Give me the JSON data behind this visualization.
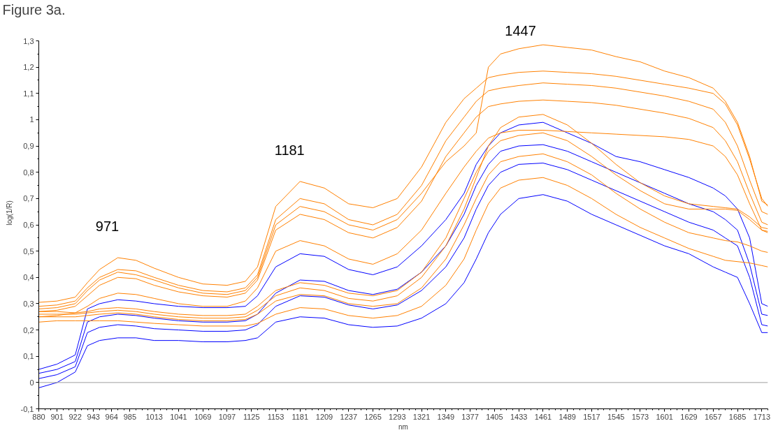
{
  "chart_data": {
    "type": "line",
    "title": "Figure 3a.",
    "xlabel": "nm",
    "ylabel": "log(1/R)",
    "xlim": [
      880,
      1720
    ],
    "ylim": [
      -0.1,
      1.3
    ],
    "xticks": [
      880,
      {
        "value": 887,
        "label": null
      },
      {
        "value": 894,
        "label": null
      },
      901,
      {
        "value": 908,
        "label": null
      },
      {
        "value": 915,
        "label": null
      },
      922,
      {
        "value": 929,
        "label": null
      },
      {
        "value": 936,
        "label": null
      },
      943,
      {
        "value": 950,
        "label": null
      },
      {
        "value": 957,
        "label": null
      },
      964,
      {
        "value": 971,
        "label": null
      },
      {
        "value": 978,
        "label": null
      },
      985,
      {
        "value": 992,
        "label": null
      },
      {
        "value": 999,
        "label": null
      },
      {
        "value": 1006,
        "label": null
      },
      1013,
      {
        "value": 1020,
        "label": null
      },
      {
        "value": 1027,
        "label": null
      },
      {
        "value": 1034,
        "label": null
      },
      1041,
      {
        "value": 1048,
        "label": null
      },
      {
        "value": 1055,
        "label": null
      },
      {
        "value": 1062,
        "label": null
      },
      1069,
      {
        "value": 1076,
        "label": null
      },
      {
        "value": 1083,
        "label": null
      },
      {
        "value": 1090,
        "label": null
      },
      1097,
      {
        "value": 1104,
        "label": null
      },
      {
        "value": 1111,
        "label": null
      },
      {
        "value": 1118,
        "label": null
      },
      1125,
      {
        "value": 1132,
        "label": null
      },
      {
        "value": 1139,
        "label": null
      },
      {
        "value": 1146,
        "label": null
      },
      1153,
      {
        "value": 1160,
        "label": null
      },
      {
        "value": 1167,
        "label": null
      },
      {
        "value": 1174,
        "label": null
      },
      1181,
      {
        "value": 1188,
        "label": null
      },
      {
        "value": 1195,
        "label": null
      },
      {
        "value": 1202,
        "label": null
      },
      1209,
      {
        "value": 1216,
        "label": null
      },
      {
        "value": 1223,
        "label": null
      },
      {
        "value": 1230,
        "label": null
      },
      1237,
      {
        "value": 1244,
        "label": null
      },
      {
        "value": 1251,
        "label": null
      },
      {
        "value": 1258,
        "label": null
      },
      1265,
      {
        "value": 1272,
        "label": null
      },
      {
        "value": 1279,
        "label": null
      },
      {
        "value": 1286,
        "label": null
      },
      1293,
      {
        "value": 1300,
        "label": null
      },
      {
        "value": 1307,
        "label": null
      },
      {
        "value": 1314,
        "label": null
      },
      1321,
      {
        "value": 1328,
        "label": null
      },
      {
        "value": 1335,
        "label": null
      },
      {
        "value": 1342,
        "label": null
      },
      1349,
      {
        "value": 1356,
        "label": null
      },
      {
        "value": 1363,
        "label": null
      },
      {
        "value": 1370,
        "label": null
      },
      1377,
      {
        "value": 1384,
        "label": null
      },
      {
        "value": 1391,
        "label": null
      },
      {
        "value": 1398,
        "label": null
      },
      1405,
      {
        "value": 1412,
        "label": null
      },
      {
        "value": 1419,
        "label": null
      },
      {
        "value": 1426,
        "label": null
      },
      1433,
      {
        "value": 1440,
        "label": null
      },
      {
        "value": 1447,
        "label": null
      },
      {
        "value": 1454,
        "label": null
      },
      1461,
      {
        "value": 1468,
        "label": null
      },
      {
        "value": 1475,
        "label": null
      },
      {
        "value": 1482,
        "label": null
      },
      1489,
      {
        "value": 1496,
        "label": null
      },
      {
        "value": 1503,
        "label": null
      },
      {
        "value": 1510,
        "label": null
      },
      1517,
      {
        "value": 1524,
        "label": null
      },
      {
        "value": 1531,
        "label": null
      },
      {
        "value": 1538,
        "label": null
      },
      1545,
      {
        "value": 1552,
        "label": null
      },
      {
        "value": 1559,
        "label": null
      },
      {
        "value": 1566,
        "label": null
      },
      1573,
      {
        "value": 1580,
        "label": null
      },
      {
        "value": 1587,
        "label": null
      },
      {
        "value": 1594,
        "label": null
      },
      1601,
      {
        "value": 1608,
        "label": null
      },
      {
        "value": 1615,
        "label": null
      },
      {
        "value": 1622,
        "label": null
      },
      1629,
      {
        "value": 1636,
        "label": null
      },
      {
        "value": 1643,
        "label": null
      },
      {
        "value": 1650,
        "label": null
      },
      1657,
      {
        "value": 1664,
        "label": null
      },
      {
        "value": 1671,
        "label": null
      },
      {
        "value": 1678,
        "label": null
      },
      1685,
      {
        "value": 1692,
        "label": null
      },
      {
        "value": 1699,
        "label": null
      },
      {
        "value": 1706,
        "label": null
      },
      1713,
      {
        "value": 1720,
        "label": null
      }
    ],
    "yticks": [
      {
        "value": -0.1,
        "label": "-0,1"
      },
      {
        "value": -0.05,
        "label": null
      },
      0,
      {
        "value": 0.05,
        "label": null
      },
      {
        "value": 0.1,
        "label": "0,1"
      },
      {
        "value": 0.15,
        "label": null
      },
      {
        "value": 0.2,
        "label": "0,2"
      },
      {
        "value": 0.25,
        "label": null
      },
      {
        "value": 0.3,
        "label": "0,3"
      },
      {
        "value": 0.35,
        "label": null
      },
      {
        "value": 0.4,
        "label": "0,4"
      },
      {
        "value": 0.45,
        "label": null
      },
      {
        "value": 0.5,
        "label": "0,5"
      },
      {
        "value": 0.55,
        "label": null
      },
      {
        "value": 0.6,
        "label": "0,6"
      },
      {
        "value": 0.65,
        "label": null
      },
      {
        "value": 0.7,
        "label": "0,7"
      },
      {
        "value": 0.75,
        "label": null
      },
      {
        "value": 0.8,
        "label": "0,8"
      },
      {
        "value": 0.85,
        "label": null
      },
      {
        "value": 0.9,
        "label": "0,9"
      },
      {
        "value": 0.95,
        "label": null
      },
      1,
      {
        "value": 1.05,
        "label": null
      },
      {
        "value": 1.1,
        "label": "1,1"
      },
      {
        "value": 1.15,
        "label": null
      },
      {
        "value": 1.2,
        "label": "1,2"
      },
      {
        "value": 1.25,
        "label": null
      },
      {
        "value": 1.3,
        "label": "1,3"
      }
    ],
    "ref_lines": [
      {
        "axis": "y",
        "value": 0,
        "color": "#a0a0a0"
      }
    ],
    "annotations": [
      {
        "text": "971",
        "x": 971,
        "y": 0.475
      },
      {
        "text": "1181",
        "x": 1181,
        "y": 0.765
      },
      {
        "text": "1447",
        "x": 1447,
        "y": 1.28
      }
    ],
    "x": [
      880,
      901,
      922,
      936,
      950,
      971,
      992,
      1013,
      1041,
      1069,
      1097,
      1118,
      1132,
      1153,
      1181,
      1209,
      1237,
      1265,
      1293,
      1321,
      1349,
      1370,
      1384,
      1398,
      1412,
      1433,
      1461,
      1489,
      1517,
      1545,
      1573,
      1601,
      1629,
      1657,
      1671,
      1685,
      1699,
      1713,
      1720
    ],
    "series": [
      {
        "color": "#0000ff",
        "values": [
          0.05,
          0.07,
          0.105,
          0.28,
          0.3,
          0.315,
          0.31,
          0.3,
          0.29,
          0.285,
          0.285,
          0.29,
          0.33,
          0.44,
          0.49,
          0.48,
          0.43,
          0.41,
          0.44,
          0.52,
          0.62,
          0.72,
          0.83,
          0.9,
          0.95,
          0.98,
          0.99,
          0.95,
          0.91,
          0.86,
          0.84,
          0.81,
          0.78,
          0.74,
          0.71,
          0.66,
          0.55,
          0.3,
          0.29
        ]
      },
      {
        "color": "#0000ff",
        "values": [
          0.035,
          0.05,
          0.08,
          0.23,
          0.25,
          0.26,
          0.255,
          0.245,
          0.235,
          0.23,
          0.23,
          0.235,
          0.26,
          0.34,
          0.39,
          0.385,
          0.35,
          0.335,
          0.355,
          0.42,
          0.52,
          0.64,
          0.75,
          0.83,
          0.88,
          0.9,
          0.905,
          0.88,
          0.84,
          0.8,
          0.76,
          0.72,
          0.68,
          0.65,
          0.62,
          0.58,
          0.45,
          0.26,
          0.255
        ]
      },
      {
        "color": "#0000ff",
        "values": [
          0.015,
          0.03,
          0.06,
          0.19,
          0.21,
          0.22,
          0.215,
          0.205,
          0.2,
          0.195,
          0.195,
          0.2,
          0.22,
          0.29,
          0.33,
          0.325,
          0.295,
          0.28,
          0.295,
          0.35,
          0.44,
          0.55,
          0.66,
          0.75,
          0.8,
          0.83,
          0.835,
          0.81,
          0.77,
          0.73,
          0.69,
          0.65,
          0.61,
          0.58,
          0.55,
          0.52,
          0.4,
          0.22,
          0.215
        ]
      },
      {
        "color": "#0000ff",
        "values": [
          -0.02,
          0,
          0.04,
          0.14,
          0.16,
          0.17,
          0.17,
          0.16,
          0.16,
          0.155,
          0.155,
          0.16,
          0.17,
          0.23,
          0.25,
          0.245,
          0.22,
          0.21,
          0.215,
          0.245,
          0.3,
          0.38,
          0.47,
          0.57,
          0.64,
          0.7,
          0.715,
          0.69,
          0.64,
          0.6,
          0.56,
          0.52,
          0.49,
          0.44,
          0.42,
          0.4,
          0.3,
          0.19,
          0.19
        ]
      },
      {
        "color": "#ff8000",
        "values": [
          0.27,
          0.27,
          0.265,
          0.27,
          0.28,
          0.285,
          0.28,
          0.27,
          0.26,
          0.255,
          0.255,
          0.26,
          0.29,
          0.35,
          0.38,
          0.37,
          0.34,
          0.33,
          0.35,
          0.42,
          0.55,
          0.7,
          0.8,
          0.88,
          0.92,
          0.94,
          0.95,
          0.92,
          0.86,
          0.79,
          0.73,
          0.68,
          0.66,
          0.66,
          0.66,
          0.655,
          0.62,
          0.58,
          0.575
        ]
      },
      {
        "color": "#ff8000",
        "values": [
          0.25,
          0.25,
          0.25,
          0.255,
          0.26,
          0.265,
          0.26,
          0.25,
          0.24,
          0.235,
          0.235,
          0.24,
          0.26,
          0.31,
          0.335,
          0.33,
          0.3,
          0.29,
          0.3,
          0.36,
          0.47,
          0.6,
          0.7,
          0.79,
          0.84,
          0.86,
          0.87,
          0.84,
          0.79,
          0.72,
          0.66,
          0.61,
          0.57,
          0.55,
          0.54,
          0.535,
          0.52,
          0.5,
          0.495
        ]
      },
      {
        "color": "#ff8000",
        "values": [
          0.23,
          0.235,
          0.235,
          0.235,
          0.235,
          0.235,
          0.23,
          0.225,
          0.22,
          0.215,
          0.215,
          0.215,
          0.225,
          0.26,
          0.285,
          0.28,
          0.255,
          0.245,
          0.255,
          0.29,
          0.37,
          0.47,
          0.58,
          0.68,
          0.74,
          0.77,
          0.78,
          0.75,
          0.7,
          0.64,
          0.59,
          0.55,
          0.51,
          0.48,
          0.465,
          0.46,
          0.455,
          0.445,
          0.44
        ]
      },
      {
        "color": "#ff8000",
        "values": [
          0.26,
          0.26,
          0.26,
          0.265,
          0.27,
          0.275,
          0.27,
          0.26,
          0.25,
          0.245,
          0.245,
          0.25,
          0.275,
          0.33,
          0.36,
          0.35,
          0.32,
          0.31,
          0.33,
          0.4,
          0.52,
          0.66,
          0.78,
          0.9,
          0.97,
          1.01,
          1.02,
          0.98,
          0.91,
          0.83,
          0.76,
          0.71,
          0.68,
          0.67,
          0.665,
          0.66,
          0.63,
          0.59,
          0.585
        ]
      },
      {
        "color": "#ff8000",
        "values": [
          0.305,
          0.31,
          0.325,
          0.38,
          0.43,
          0.475,
          0.465,
          0.435,
          0.4,
          0.375,
          0.37,
          0.385,
          0.44,
          0.67,
          0.765,
          0.74,
          0.68,
          0.665,
          0.7,
          0.82,
          0.99,
          1.08,
          1.12,
          1.16,
          1.17,
          1.18,
          1.185,
          1.18,
          1.175,
          1.165,
          1.15,
          1.135,
          1.12,
          1.1,
          1.06,
          0.98,
          0.85,
          0.7,
          0.67
        ]
      },
      {
        "color": "#ff8000",
        "values": [
          0.29,
          0.295,
          0.31,
          0.36,
          0.4,
          0.43,
          0.425,
          0.4,
          0.37,
          0.35,
          0.345,
          0.36,
          0.41,
          0.62,
          0.7,
          0.68,
          0.62,
          0.6,
          0.64,
          0.75,
          0.92,
          1.01,
          1.07,
          1.11,
          1.12,
          1.13,
          1.14,
          1.135,
          1.13,
          1.12,
          1.105,
          1.09,
          1.07,
          1.04,
          0.99,
          0.9,
          0.77,
          0.65,
          0.64
        ]
      },
      {
        "color": "#ff8000",
        "values": [
          0.27,
          0.275,
          0.29,
          0.33,
          0.37,
          0.4,
          0.395,
          0.37,
          0.345,
          0.33,
          0.325,
          0.34,
          0.39,
          0.58,
          0.64,
          0.62,
          0.57,
          0.55,
          0.59,
          0.69,
          0.86,
          0.95,
          1.01,
          1.05,
          1.06,
          1.07,
          1.075,
          1.07,
          1.065,
          1.055,
          1.04,
          1.025,
          1.005,
          0.97,
          0.92,
          0.84,
          0.72,
          0.61,
          0.6
        ]
      },
      {
        "color": "#ff8000",
        "values": [
          0.25,
          0.255,
          0.265,
          0.29,
          0.32,
          0.34,
          0.335,
          0.32,
          0.3,
          0.29,
          0.29,
          0.31,
          0.36,
          0.5,
          0.54,
          0.52,
          0.47,
          0.45,
          0.49,
          0.58,
          0.72,
          0.82,
          0.88,
          0.93,
          0.95,
          0.96,
          0.96,
          0.955,
          0.95,
          0.945,
          0.94,
          0.935,
          0.925,
          0.9,
          0.86,
          0.79,
          0.68,
          0.58,
          0.57
        ]
      },
      {
        "color": "#ff8000",
        "values": [
          0.28,
          0.285,
          0.3,
          0.35,
          0.39,
          0.42,
          0.41,
          0.39,
          0.36,
          0.34,
          0.335,
          0.35,
          0.4,
          0.6,
          0.67,
          0.65,
          0.6,
          0.58,
          0.62,
          0.72,
          0.84,
          0.9,
          0.95,
          1.2,
          1.25,
          1.27,
          1.285,
          1.275,
          1.265,
          1.24,
          1.22,
          1.185,
          1.16,
          1.12,
          1.07,
          0.99,
          0.86,
          0.69,
          0.675
        ]
      }
    ]
  }
}
